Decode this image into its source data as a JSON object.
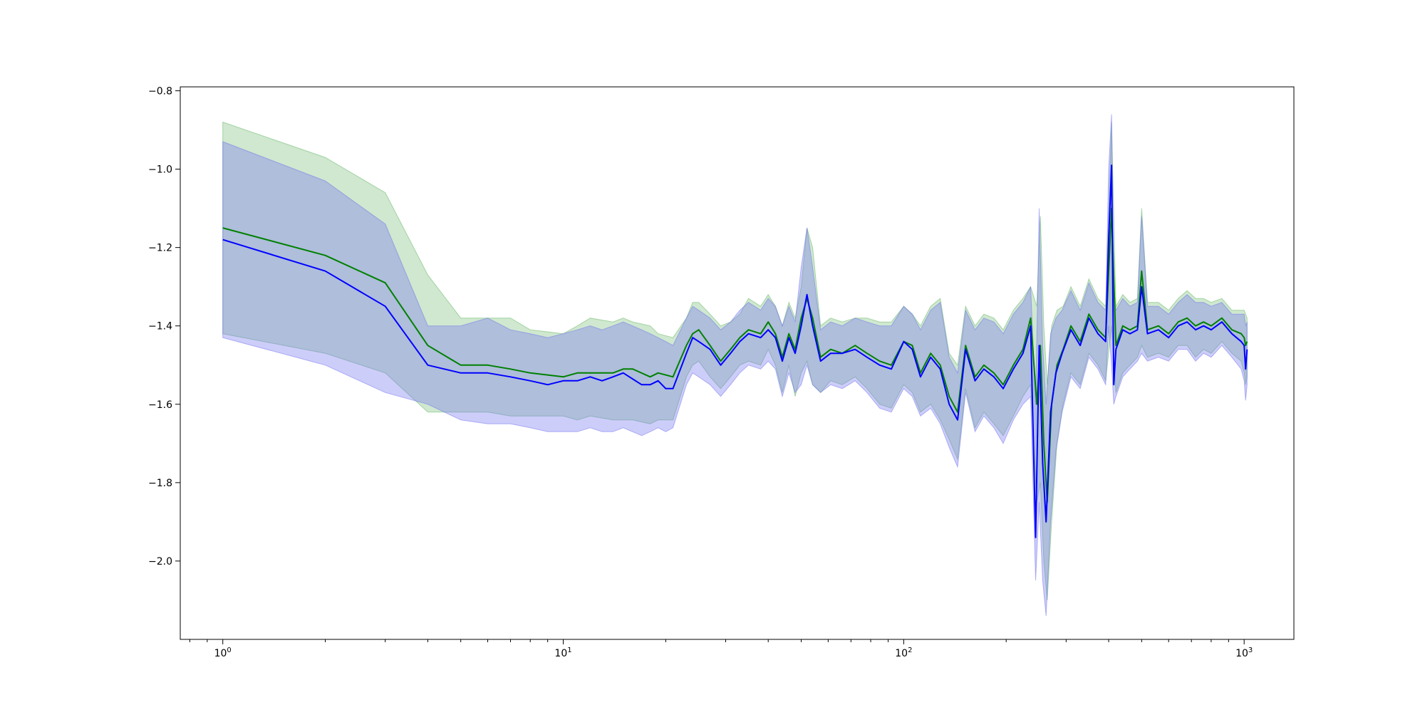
{
  "chart_data": {
    "type": "line",
    "title": "",
    "xlabel": "",
    "ylabel": "",
    "xscale": "log",
    "xlim": [
      0.75,
      1400
    ],
    "ylim": [
      -2.2,
      -0.79
    ],
    "grid": false,
    "legend": "none",
    "x_ticks": [
      {
        "value": 1,
        "label": "10",
        "exp": "0"
      },
      {
        "value": 10,
        "label": "10",
        "exp": "1"
      },
      {
        "value": 100,
        "label": "10",
        "exp": "2"
      },
      {
        "value": 1000,
        "label": "10",
        "exp": "3"
      }
    ],
    "y_ticks": [
      {
        "value": -0.8,
        "label": "−0.8"
      },
      {
        "value": -1.0,
        "label": "−1.0"
      },
      {
        "value": -1.2,
        "label": "−1.2"
      },
      {
        "value": -1.4,
        "label": "−1.4"
      },
      {
        "value": -1.6,
        "label": "−1.6"
      },
      {
        "value": -1.8,
        "label": "−1.8"
      },
      {
        "value": -2.0,
        "label": "−2.0"
      }
    ],
    "series": [
      {
        "color": "#008000",
        "band_color": "#5fb35f",
        "band_opacity": 0.3,
        "points": [
          [
            1,
            -1.15,
            -0.88,
            -1.42
          ],
          [
            2,
            -1.22,
            -0.97,
            -1.47
          ],
          [
            3,
            -1.29,
            -1.06,
            -1.52
          ],
          [
            4,
            -1.45,
            -1.27,
            -1.62
          ],
          [
            5,
            -1.5,
            -1.38,
            -1.62
          ],
          [
            6,
            -1.5,
            -1.38,
            -1.62
          ],
          [
            7,
            -1.51,
            -1.38,
            -1.63
          ],
          [
            8,
            -1.52,
            -1.41,
            -1.63
          ],
          [
            10,
            -1.53,
            -1.42,
            -1.63
          ],
          [
            11,
            -1.52,
            -1.4,
            -1.64
          ],
          [
            12,
            -1.52,
            -1.38,
            -1.63
          ],
          [
            14,
            -1.52,
            -1.39,
            -1.64
          ],
          [
            15,
            -1.51,
            -1.38,
            -1.64
          ],
          [
            16,
            -1.51,
            -1.39,
            -1.64
          ],
          [
            18,
            -1.53,
            -1.4,
            -1.65
          ],
          [
            19,
            -1.52,
            -1.42,
            -1.64
          ],
          [
            21,
            -1.53,
            -1.43,
            -1.64
          ],
          [
            23,
            -1.45,
            -1.38,
            -1.53
          ],
          [
            24,
            -1.42,
            -1.34,
            -1.5
          ],
          [
            25,
            -1.41,
            -1.34,
            -1.49
          ],
          [
            27,
            -1.45,
            -1.37,
            -1.53
          ],
          [
            29,
            -1.49,
            -1.4,
            -1.56
          ],
          [
            31,
            -1.46,
            -1.39,
            -1.53
          ],
          [
            33,
            -1.43,
            -1.37,
            -1.5
          ],
          [
            35,
            -1.41,
            -1.33,
            -1.49
          ],
          [
            38,
            -1.42,
            -1.35,
            -1.5
          ],
          [
            40,
            -1.39,
            -1.32,
            -1.46
          ],
          [
            42,
            -1.42,
            -1.35,
            -1.5
          ],
          [
            44,
            -1.48,
            -1.4,
            -1.57
          ],
          [
            46,
            -1.42,
            -1.34,
            -1.5
          ],
          [
            48,
            -1.46,
            -1.38,
            -1.58
          ],
          [
            50,
            -1.38,
            -1.3,
            -1.52
          ],
          [
            52,
            -1.33,
            -1.15,
            -1.49
          ],
          [
            54,
            -1.38,
            -1.2,
            -1.55
          ],
          [
            57,
            -1.48,
            -1.4,
            -1.57
          ],
          [
            61,
            -1.46,
            -1.38,
            -1.54
          ],
          [
            66,
            -1.47,
            -1.39,
            -1.55
          ],
          [
            72,
            -1.45,
            -1.38,
            -1.53
          ],
          [
            78,
            -1.47,
            -1.38,
            -1.56
          ],
          [
            85,
            -1.49,
            -1.39,
            -1.6
          ],
          [
            92,
            -1.5,
            -1.39,
            -1.61
          ],
          [
            100,
            -1.44,
            -1.35,
            -1.55
          ],
          [
            106,
            -1.45,
            -1.37,
            -1.57
          ],
          [
            112,
            -1.52,
            -1.4,
            -1.62
          ],
          [
            120,
            -1.47,
            -1.35,
            -1.6
          ],
          [
            128,
            -1.5,
            -1.33,
            -1.64
          ],
          [
            136,
            -1.58,
            -1.47,
            -1.69
          ],
          [
            144,
            -1.62,
            -1.5,
            -1.74
          ],
          [
            152,
            -1.45,
            -1.35,
            -1.56
          ],
          [
            162,
            -1.53,
            -1.4,
            -1.66
          ],
          [
            172,
            -1.5,
            -1.37,
            -1.62
          ],
          [
            184,
            -1.52,
            -1.38,
            -1.65
          ],
          [
            196,
            -1.55,
            -1.41,
            -1.68
          ],
          [
            210,
            -1.5,
            -1.36,
            -1.63
          ],
          [
            224,
            -1.46,
            -1.33,
            -1.58
          ],
          [
            236,
            -1.38,
            -1.3,
            -1.55
          ],
          [
            246,
            -1.6,
            -1.35,
            -1.85
          ],
          [
            252,
            -1.45,
            -1.12,
            -1.8
          ],
          [
            258,
            -1.7,
            -1.4,
            -2.0
          ],
          [
            264,
            -1.85,
            -1.55,
            -2.1
          ],
          [
            272,
            -1.6,
            -1.4,
            -1.9
          ],
          [
            282,
            -1.5,
            -1.36,
            -1.7
          ],
          [
            294,
            -1.46,
            -1.35,
            -1.6
          ],
          [
            310,
            -1.4,
            -1.3,
            -1.52
          ],
          [
            330,
            -1.44,
            -1.35,
            -1.55
          ],
          [
            350,
            -1.37,
            -1.28,
            -1.47
          ],
          [
            372,
            -1.41,
            -1.33,
            -1.5
          ],
          [
            392,
            -1.43,
            -1.35,
            -1.54
          ],
          [
            408,
            -1.1,
            -0.88,
            -1.4
          ],
          [
            420,
            -1.45,
            -1.35,
            -1.57
          ],
          [
            440,
            -1.4,
            -1.32,
            -1.52
          ],
          [
            462,
            -1.41,
            -1.34,
            -1.5
          ],
          [
            486,
            -1.4,
            -1.33,
            -1.48
          ],
          [
            500,
            -1.26,
            -1.1,
            -1.45
          ],
          [
            520,
            -1.41,
            -1.34,
            -1.48
          ],
          [
            560,
            -1.4,
            -1.34,
            -1.47
          ],
          [
            600,
            -1.42,
            -1.36,
            -1.48
          ],
          [
            640,
            -1.39,
            -1.33,
            -1.45
          ],
          [
            680,
            -1.38,
            -1.31,
            -1.45
          ],
          [
            720,
            -1.4,
            -1.33,
            -1.48
          ],
          [
            760,
            -1.39,
            -1.33,
            -1.46
          ],
          [
            800,
            -1.4,
            -1.34,
            -1.47
          ],
          [
            860,
            -1.38,
            -1.33,
            -1.44
          ],
          [
            920,
            -1.41,
            -1.36,
            -1.47
          ],
          [
            980,
            -1.42,
            -1.36,
            -1.49
          ],
          [
            1000,
            -1.43,
            -1.36,
            -1.52
          ],
          [
            1010,
            -1.45,
            -1.37,
            -1.55
          ],
          [
            1020,
            -1.44,
            -1.38,
            -1.53
          ]
        ]
      },
      {
        "color": "#0000ff",
        "band_color": "#7070f0",
        "band_opacity": 0.35,
        "points": [
          [
            1,
            -1.18,
            -0.93,
            -1.43
          ],
          [
            2,
            -1.26,
            -1.03,
            -1.5
          ],
          [
            3,
            -1.35,
            -1.14,
            -1.57
          ],
          [
            4,
            -1.5,
            -1.4,
            -1.6
          ],
          [
            5,
            -1.52,
            -1.4,
            -1.64
          ],
          [
            6,
            -1.52,
            -1.38,
            -1.65
          ],
          [
            7,
            -1.53,
            -1.41,
            -1.65
          ],
          [
            8,
            -1.54,
            -1.42,
            -1.66
          ],
          [
            9,
            -1.55,
            -1.43,
            -1.67
          ],
          [
            10,
            -1.54,
            -1.42,
            -1.67
          ],
          [
            11,
            -1.54,
            -1.41,
            -1.67
          ],
          [
            12,
            -1.53,
            -1.4,
            -1.66
          ],
          [
            13,
            -1.54,
            -1.41,
            -1.67
          ],
          [
            14,
            -1.53,
            -1.4,
            -1.67
          ],
          [
            15,
            -1.52,
            -1.39,
            -1.66
          ],
          [
            17,
            -1.55,
            -1.41,
            -1.68
          ],
          [
            18,
            -1.55,
            -1.42,
            -1.67
          ],
          [
            19,
            -1.54,
            -1.43,
            -1.66
          ],
          [
            20,
            -1.56,
            -1.44,
            -1.67
          ],
          [
            21,
            -1.56,
            -1.45,
            -1.66
          ],
          [
            23,
            -1.47,
            -1.38,
            -1.55
          ],
          [
            24,
            -1.43,
            -1.35,
            -1.52
          ],
          [
            25,
            -1.44,
            -1.36,
            -1.53
          ],
          [
            27,
            -1.46,
            -1.38,
            -1.55
          ],
          [
            29,
            -1.5,
            -1.41,
            -1.58
          ],
          [
            31,
            -1.47,
            -1.39,
            -1.55
          ],
          [
            33,
            -1.44,
            -1.36,
            -1.52
          ],
          [
            35,
            -1.42,
            -1.34,
            -1.5
          ],
          [
            38,
            -1.43,
            -1.36,
            -1.51
          ],
          [
            40,
            -1.41,
            -1.33,
            -1.49
          ],
          [
            42,
            -1.43,
            -1.35,
            -1.51
          ],
          [
            44,
            -1.49,
            -1.4,
            -1.58
          ],
          [
            46,
            -1.43,
            -1.35,
            -1.52
          ],
          [
            48,
            -1.47,
            -1.39,
            -1.57
          ],
          [
            50,
            -1.4,
            -1.25,
            -1.55
          ],
          [
            52,
            -1.32,
            -1.15,
            -1.5
          ],
          [
            54,
            -1.4,
            -1.25,
            -1.55
          ],
          [
            57,
            -1.49,
            -1.41,
            -1.57
          ],
          [
            61,
            -1.47,
            -1.39,
            -1.55
          ],
          [
            66,
            -1.47,
            -1.4,
            -1.56
          ],
          [
            72,
            -1.46,
            -1.38,
            -1.54
          ],
          [
            78,
            -1.48,
            -1.39,
            -1.57
          ],
          [
            85,
            -1.5,
            -1.4,
            -1.61
          ],
          [
            92,
            -1.51,
            -1.4,
            -1.62
          ],
          [
            100,
            -1.44,
            -1.35,
            -1.56
          ],
          [
            106,
            -1.46,
            -1.37,
            -1.58
          ],
          [
            112,
            -1.53,
            -1.41,
            -1.63
          ],
          [
            120,
            -1.48,
            -1.36,
            -1.61
          ],
          [
            128,
            -1.51,
            -1.34,
            -1.65
          ],
          [
            136,
            -1.6,
            -1.48,
            -1.71
          ],
          [
            144,
            -1.64,
            -1.52,
            -1.76
          ],
          [
            152,
            -1.46,
            -1.36,
            -1.57
          ],
          [
            162,
            -1.54,
            -1.41,
            -1.67
          ],
          [
            172,
            -1.51,
            -1.38,
            -1.63
          ],
          [
            184,
            -1.53,
            -1.39,
            -1.66
          ],
          [
            196,
            -1.56,
            -1.42,
            -1.7
          ],
          [
            210,
            -1.51,
            -1.37,
            -1.64
          ],
          [
            224,
            -1.47,
            -1.34,
            -1.6
          ],
          [
            236,
            -1.4,
            -1.3,
            -1.58
          ],
          [
            244,
            -1.94,
            -1.6,
            -2.05
          ],
          [
            250,
            -1.45,
            -1.1,
            -1.85
          ],
          [
            256,
            -1.75,
            -1.45,
            -2.05
          ],
          [
            262,
            -1.9,
            -1.6,
            -2.14
          ],
          [
            270,
            -1.62,
            -1.42,
            -1.9
          ],
          [
            280,
            -1.52,
            -1.38,
            -1.72
          ],
          [
            292,
            -1.47,
            -1.36,
            -1.62
          ],
          [
            310,
            -1.41,
            -1.31,
            -1.53
          ],
          [
            330,
            -1.45,
            -1.36,
            -1.56
          ],
          [
            350,
            -1.38,
            -1.29,
            -1.48
          ],
          [
            372,
            -1.42,
            -1.34,
            -1.51
          ],
          [
            392,
            -1.44,
            -1.36,
            -1.55
          ],
          [
            400,
            -1.18,
            -1.0,
            -1.4
          ],
          [
            408,
            -0.99,
            -0.86,
            -1.5
          ],
          [
            414,
            -1.55,
            -1.3,
            -1.6
          ],
          [
            420,
            -1.46,
            -1.36,
            -1.58
          ],
          [
            440,
            -1.41,
            -1.33,
            -1.53
          ],
          [
            462,
            -1.42,
            -1.35,
            -1.51
          ],
          [
            486,
            -1.41,
            -1.34,
            -1.49
          ],
          [
            500,
            -1.3,
            -1.12,
            -1.47
          ],
          [
            520,
            -1.42,
            -1.35,
            -1.49
          ],
          [
            560,
            -1.41,
            -1.35,
            -1.48
          ],
          [
            600,
            -1.43,
            -1.37,
            -1.49
          ],
          [
            640,
            -1.4,
            -1.34,
            -1.46
          ],
          [
            680,
            -1.39,
            -1.32,
            -1.46
          ],
          [
            720,
            -1.41,
            -1.34,
            -1.49
          ],
          [
            760,
            -1.4,
            -1.34,
            -1.47
          ],
          [
            800,
            -1.41,
            -1.35,
            -1.48
          ],
          [
            860,
            -1.39,
            -1.34,
            -1.45
          ],
          [
            920,
            -1.42,
            -1.37,
            -1.48
          ],
          [
            980,
            -1.44,
            -1.37,
            -1.51
          ],
          [
            1000,
            -1.45,
            -1.37,
            -1.54
          ],
          [
            1010,
            -1.51,
            -1.4,
            -1.59
          ],
          [
            1020,
            -1.46,
            -1.39,
            -1.55
          ]
        ]
      }
    ]
  }
}
